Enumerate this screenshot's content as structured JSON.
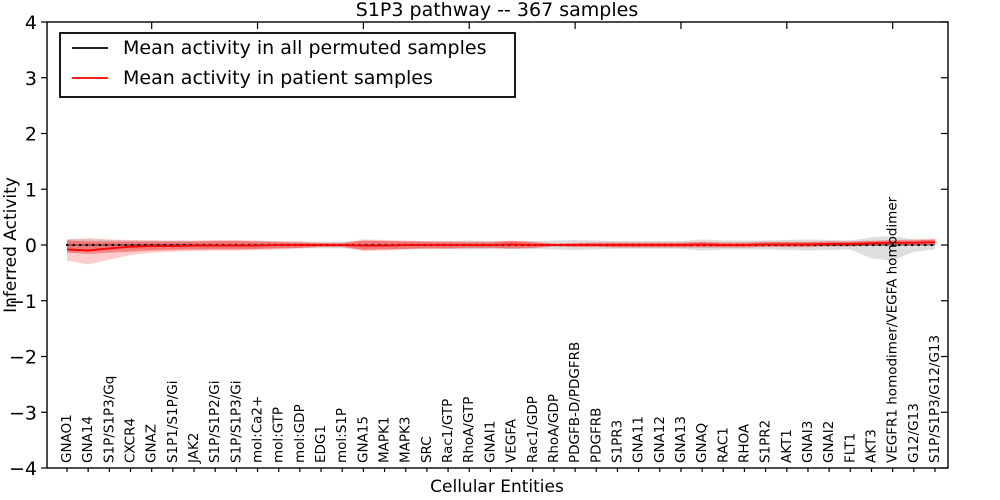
{
  "chart_data": {
    "type": "line",
    "title": "S1P3 pathway -- 367 samples",
    "xlabel": "Cellular Entities",
    "ylabel": "Inferred Activity",
    "ylim": [
      -4,
      4
    ],
    "yticks": [
      -4,
      -3,
      -2,
      -1,
      0,
      1,
      2,
      3,
      4
    ],
    "grid": false,
    "legend_position": "upper left",
    "colors": {
      "permuted": "#000000",
      "patient": "#ff0000",
      "permuted_band": "#000000",
      "patient_band": "#ff0000",
      "background": "#ffffff",
      "frame": "#000000"
    },
    "legend": [
      {
        "label": "Mean activity in all permuted samples",
        "color": "#000000"
      },
      {
        "label": "Mean activity in patient samples",
        "color": "#ff0000"
      }
    ],
    "categories": [
      "GNAO1",
      "GNA14",
      "S1P/S1P3/Gq",
      "CXCR4",
      "GNAZ",
      "S1P1/S1P/Gi",
      "JAK2",
      "S1P/S1P2/Gi",
      "S1P/S1P3/Gi",
      "mol:Ca2+",
      "mol:GTP",
      "mol:GDP",
      "EDG1",
      "mol:S1P",
      "GNA15",
      "MAPK1",
      "MAPK3",
      "SRC",
      "Rac1/GTP",
      "RhoA/GTP",
      "GNAI1",
      "VEGFA",
      "Rac1/GDP",
      "RhoA/GDP",
      "PDGFB-D/PDGFRB",
      "PDGFRB",
      "S1PR3",
      "GNA11",
      "GNA12",
      "GNA13",
      "GNAQ",
      "RAC1",
      "RHOA",
      "S1PR2",
      "AKT1",
      "GNAI3",
      "GNAI2",
      "FLT1",
      "AKT3",
      "VEGFR1 homodimer/VEGFA homodimer",
      "G12/G13",
      "S1P/S1P3/G12/G13"
    ],
    "series": [
      {
        "name": "Mean activity in all permuted samples",
        "color": "#000000",
        "style": "dotted",
        "values": [
          0,
          0,
          0,
          0,
          0,
          0,
          0,
          0,
          0,
          0,
          0,
          0,
          0,
          0,
          0,
          0,
          0,
          0,
          0,
          0,
          0,
          0,
          0,
          0,
          0,
          0,
          0,
          0,
          0,
          0,
          0,
          0,
          0,
          0,
          0,
          0,
          0,
          0,
          0,
          0,
          0,
          0
        ]
      },
      {
        "name": "Mean activity in patient samples",
        "color": "#ff0000",
        "style": "solid",
        "values": [
          -0.08,
          -0.1,
          -0.06,
          -0.03,
          -0.02,
          -0.02,
          -0.01,
          -0.01,
          -0.01,
          -0.01,
          0,
          0,
          0,
          0,
          -0.01,
          -0.01,
          0,
          0,
          0,
          0,
          0,
          0.01,
          0,
          0,
          0,
          0,
          0,
          0,
          0,
          0,
          0.01,
          0,
          0,
          0.01,
          0.01,
          0.01,
          0.02,
          0.02,
          0.03,
          0.04,
          0.04,
          0.05
        ]
      }
    ],
    "bands": [
      {
        "name": "permuted-range",
        "color": "#000000",
        "alpha": 0.13,
        "upper": [
          0.1,
          0.1,
          0.09,
          0.08,
          0.08,
          0.07,
          0.07,
          0.07,
          0.07,
          0.07,
          0.06,
          0.06,
          0.06,
          0.06,
          0.07,
          0.07,
          0.07,
          0.06,
          0.07,
          0.08,
          0.07,
          0.07,
          0.07,
          0.08,
          0.09,
          0.08,
          0.07,
          0.07,
          0.07,
          0.07,
          0.1,
          0.08,
          0.08,
          0.08,
          0.09,
          0.1,
          0.09,
          0.08,
          0.14,
          0.16,
          0.1,
          0.08
        ],
        "lower": [
          -0.1,
          -0.1,
          -0.09,
          -0.08,
          -0.08,
          -0.07,
          -0.07,
          -0.07,
          -0.07,
          -0.07,
          -0.06,
          -0.06,
          -0.06,
          -0.06,
          -0.07,
          -0.07,
          -0.07,
          -0.06,
          -0.07,
          -0.08,
          -0.07,
          -0.07,
          -0.07,
          -0.08,
          -0.09,
          -0.08,
          -0.07,
          -0.07,
          -0.07,
          -0.07,
          -0.1,
          -0.08,
          -0.08,
          -0.08,
          -0.09,
          -0.1,
          -0.09,
          -0.08,
          -0.24,
          -0.28,
          -0.12,
          -0.08
        ]
      },
      {
        "name": "patient-outer",
        "color": "#ff0000",
        "alpha": 0.2,
        "upper": [
          0.1,
          0.12,
          0.1,
          0.09,
          0.08,
          0.08,
          0.08,
          0.09,
          0.09,
          0.08,
          0.07,
          0.06,
          0.04,
          0.04,
          0.1,
          0.09,
          0.08,
          0.07,
          0.07,
          0.06,
          0.06,
          0.08,
          0.06,
          0.03,
          0.04,
          0.05,
          0.05,
          0.05,
          0.05,
          0.05,
          0.06,
          0.05,
          0.05,
          0.06,
          0.06,
          0.06,
          0.07,
          0.07,
          0.08,
          0.09,
          0.1,
          0.12
        ],
        "lower": [
          -0.28,
          -0.35,
          -0.26,
          -0.18,
          -0.14,
          -0.12,
          -0.11,
          -0.1,
          -0.1,
          -0.09,
          -0.08,
          -0.06,
          -0.04,
          -0.04,
          -0.11,
          -0.1,
          -0.08,
          -0.07,
          -0.07,
          -0.06,
          -0.06,
          -0.07,
          -0.06,
          -0.03,
          -0.04,
          -0.04,
          -0.05,
          -0.05,
          -0.05,
          -0.05,
          -0.05,
          -0.05,
          -0.05,
          -0.04,
          -0.04,
          -0.04,
          -0.03,
          -0.03,
          -0.02,
          -0.01,
          -0.01,
          0.0
        ]
      },
      {
        "name": "patient-inner",
        "color": "#ff0000",
        "alpha": 0.33,
        "upper": [
          0.08,
          0.06,
          0.06,
          0.06,
          0.06,
          0.06,
          0.06,
          0.07,
          0.07,
          0.06,
          0.05,
          0.04,
          0.03,
          0.03,
          0.08,
          0.07,
          0.06,
          0.06,
          0.05,
          0.05,
          0.05,
          0.07,
          0.05,
          0.02,
          0.03,
          0.04,
          0.04,
          0.04,
          0.04,
          0.04,
          0.05,
          0.04,
          0.04,
          0.05,
          0.05,
          0.05,
          0.06,
          0.06,
          0.07,
          0.08,
          0.08,
          0.1
        ],
        "lower": [
          -0.14,
          -0.16,
          -0.14,
          -0.12,
          -0.1,
          -0.09,
          -0.08,
          -0.08,
          -0.08,
          -0.07,
          -0.06,
          -0.05,
          -0.03,
          -0.03,
          -0.09,
          -0.08,
          -0.07,
          -0.06,
          -0.06,
          -0.05,
          -0.05,
          -0.06,
          -0.05,
          -0.02,
          -0.03,
          -0.03,
          -0.04,
          -0.04,
          -0.04,
          -0.04,
          -0.04,
          -0.04,
          -0.04,
          -0.03,
          -0.03,
          -0.03,
          -0.02,
          -0.02,
          -0.01,
          0.0,
          0.0,
          0.01
        ]
      }
    ]
  }
}
